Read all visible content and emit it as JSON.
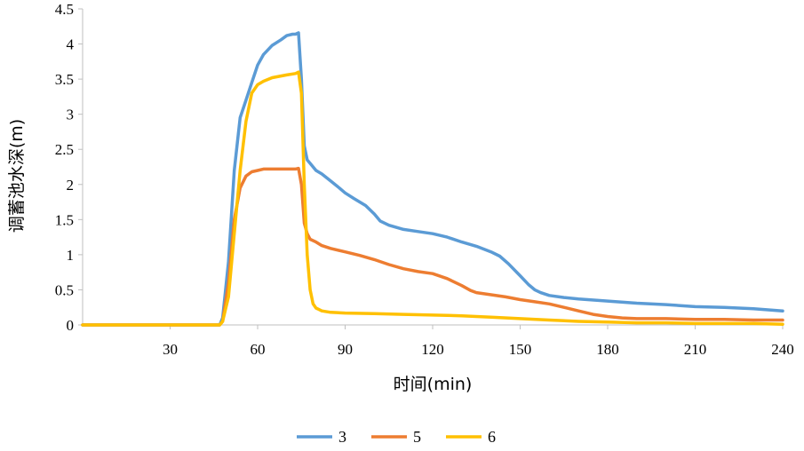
{
  "chart_data": {
    "type": "line",
    "title": "",
    "xlabel": "时间(min)",
    "ylabel": "调蓄池水深(m)",
    "xlim": [
      0,
      240
    ],
    "ylim": [
      0,
      4.5
    ],
    "xticks": [
      30,
      60,
      90,
      120,
      150,
      180,
      210,
      240
    ],
    "xtick_labels": [
      "30",
      "60",
      "90",
      "120",
      "150",
      "180",
      "210",
      "240"
    ],
    "yticks": [
      0,
      0.5,
      1,
      1.5,
      2,
      2.5,
      3,
      3.5,
      4,
      4.5
    ],
    "ytick_labels": [
      "0",
      "0.5",
      "1",
      "1.5",
      "2",
      "2.5",
      "3",
      "3.5",
      "4",
      "4.5"
    ],
    "grid": false,
    "legend_position": "bottom",
    "series": [
      {
        "name": "3",
        "color": "#5B9BD5",
        "x": [
          0,
          47,
          48,
          50,
          52,
          54,
          56,
          58,
          60,
          62,
          65,
          68,
          70,
          72,
          73,
          74,
          75,
          76,
          77,
          78,
          80,
          82,
          85,
          88,
          90,
          93,
          97,
          100,
          102,
          105,
          110,
          115,
          120,
          125,
          130,
          135,
          140,
          143,
          146,
          150,
          153,
          155,
          157,
          160,
          165,
          170,
          180,
          190,
          200,
          210,
          220,
          230,
          240
        ],
        "y": [
          0,
          0,
          0.1,
          0.9,
          2.2,
          2.95,
          3.2,
          3.45,
          3.7,
          3.85,
          3.98,
          4.06,
          4.12,
          4.14,
          4.14,
          4.16,
          3.5,
          2.55,
          2.35,
          2.3,
          2.2,
          2.15,
          2.05,
          1.95,
          1.88,
          1.8,
          1.7,
          1.58,
          1.48,
          1.42,
          1.36,
          1.33,
          1.3,
          1.25,
          1.18,
          1.12,
          1.04,
          0.98,
          0.87,
          0.7,
          0.57,
          0.5,
          0.46,
          0.42,
          0.39,
          0.37,
          0.34,
          0.31,
          0.29,
          0.26,
          0.25,
          0.23,
          0.2
        ]
      },
      {
        "name": "5",
        "color": "#ED7D31",
        "x": [
          0,
          47,
          48,
          50,
          52,
          54,
          56,
          58,
          60,
          62,
          65,
          70,
          73,
          74,
          75,
          76,
          77,
          78,
          80,
          82,
          85,
          90,
          95,
          100,
          105,
          110,
          115,
          120,
          125,
          130,
          133,
          135,
          140,
          145,
          150,
          155,
          160,
          165,
          170,
          175,
          180,
          185,
          190,
          200,
          210,
          220,
          230,
          240
        ],
        "y": [
          0,
          0,
          0.05,
          0.6,
          1.5,
          1.95,
          2.12,
          2.18,
          2.2,
          2.22,
          2.22,
          2.22,
          2.22,
          2.23,
          2.0,
          1.45,
          1.3,
          1.22,
          1.18,
          1.13,
          1.09,
          1.04,
          0.99,
          0.93,
          0.86,
          0.8,
          0.76,
          0.73,
          0.66,
          0.56,
          0.49,
          0.46,
          0.43,
          0.4,
          0.36,
          0.33,
          0.3,
          0.25,
          0.2,
          0.15,
          0.12,
          0.1,
          0.09,
          0.09,
          0.08,
          0.08,
          0.07,
          0.07
        ]
      },
      {
        "name": "6",
        "color": "#FFC000",
        "x": [
          0,
          47,
          48,
          50,
          52,
          54,
          56,
          58,
          60,
          62,
          65,
          70,
          73,
          74,
          75,
          76,
          77,
          78,
          79,
          80,
          81,
          82,
          85,
          90,
          100,
          110,
          120,
          130,
          140,
          150,
          160,
          170,
          180,
          190,
          200,
          210,
          220,
          230,
          240
        ],
        "y": [
          0,
          0,
          0.05,
          0.4,
          1.3,
          2.2,
          2.9,
          3.3,
          3.42,
          3.47,
          3.52,
          3.56,
          3.58,
          3.6,
          3.3,
          2.0,
          1.0,
          0.5,
          0.3,
          0.24,
          0.22,
          0.2,
          0.18,
          0.17,
          0.16,
          0.15,
          0.14,
          0.13,
          0.11,
          0.09,
          0.07,
          0.05,
          0.04,
          0.03,
          0.03,
          0.02,
          0.02,
          0.02,
          0.01
        ]
      }
    ]
  }
}
